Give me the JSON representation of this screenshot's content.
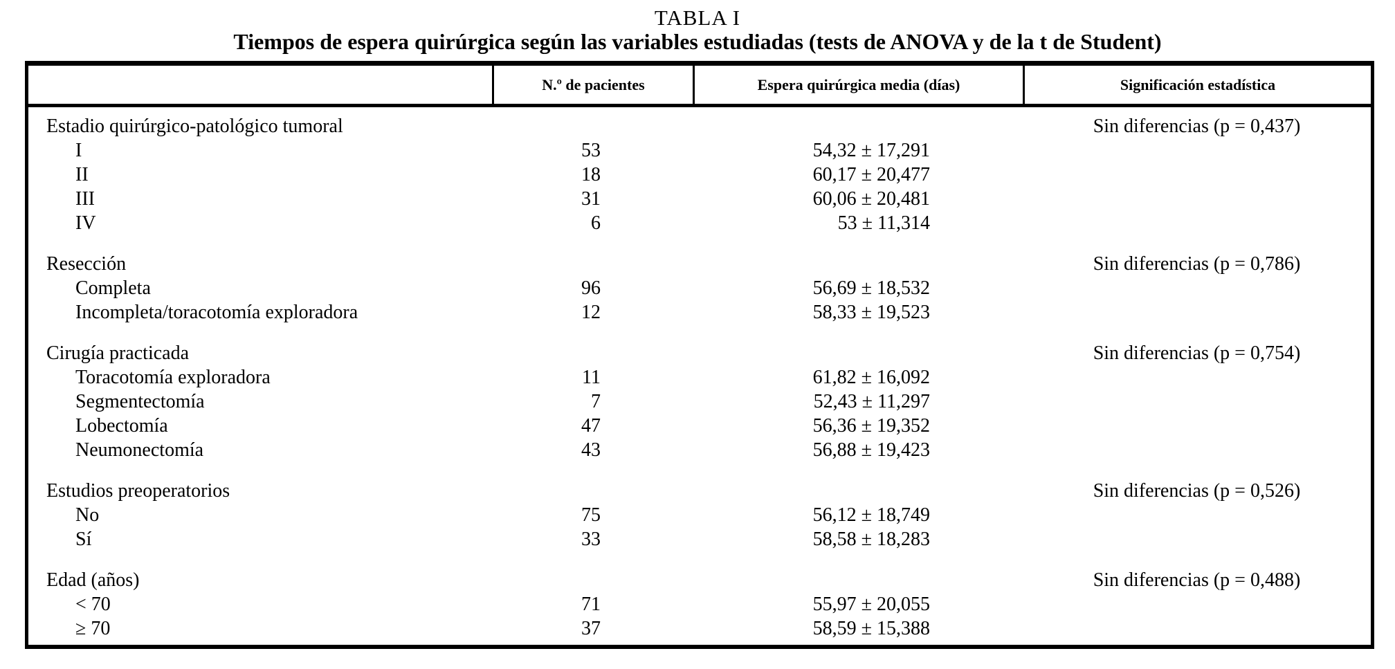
{
  "colors": {
    "background": "#ffffff",
    "text": "#000000",
    "border": "#000000"
  },
  "title": "TABLA I",
  "subtitle": "Tiempos de espera quirúrgica según las variables estudiadas (tests de ANOVA y de la t de Student)",
  "table": {
    "headers": {
      "col1": "",
      "col2": "N.º de pacientes",
      "col3": "Espera quirúrgica media (días)",
      "col4": "Significación estadística"
    },
    "groups": [
      {
        "label": "Estadio quirúrgico-patológico tumoral",
        "significance": "Sin diferencias (p = 0,437)",
        "rows": [
          {
            "label": "I",
            "patients": "53",
            "mean": "54,32 ± 17,291"
          },
          {
            "label": "II",
            "patients": "18",
            "mean": "60,17 ± 20,477"
          },
          {
            "label": "III",
            "patients": "31",
            "mean": "60,06 ± 20,481"
          },
          {
            "label": "IV",
            "patients": "6",
            "mean": "53 ± 11,314"
          }
        ]
      },
      {
        "label": "Resección",
        "significance": "Sin diferencias (p = 0,786)",
        "rows": [
          {
            "label": "Completa",
            "patients": "96",
            "mean": "56,69 ± 18,532"
          },
          {
            "label": "Incompleta/toracotomía exploradora",
            "patients": "12",
            "mean": "58,33 ± 19,523"
          }
        ]
      },
      {
        "label": "Cirugía practicada",
        "significance": "Sin diferencias (p = 0,754)",
        "rows": [
          {
            "label": "Toracotomía exploradora",
            "patients": "11",
            "mean": "61,82 ± 16,092"
          },
          {
            "label": "Segmentectomía",
            "patients": "7",
            "mean": "52,43 ± 11,297"
          },
          {
            "label": "Lobectomía",
            "patients": "47",
            "mean": "56,36 ± 19,352"
          },
          {
            "label": "Neumonectomía",
            "patients": "43",
            "mean": "56,88 ± 19,423"
          }
        ]
      },
      {
        "label": "Estudios preoperatorios",
        "significance": "Sin diferencias (p = 0,526)",
        "rows": [
          {
            "label": "No",
            "patients": "75",
            "mean": "56,12 ± 18,749"
          },
          {
            "label": "Sí",
            "patients": "33",
            "mean": "58,58 ± 18,283"
          }
        ]
      },
      {
        "label": "Edad (años)",
        "significance": "Sin diferencias (p = 0,488)",
        "rows": [
          {
            "label": "< 70",
            "patients": "71",
            "mean": "55,97 ± 20,055"
          },
          {
            "label": "≥ 70",
            "patients": "37",
            "mean": "58,59 ± 15,388"
          }
        ]
      }
    ]
  }
}
